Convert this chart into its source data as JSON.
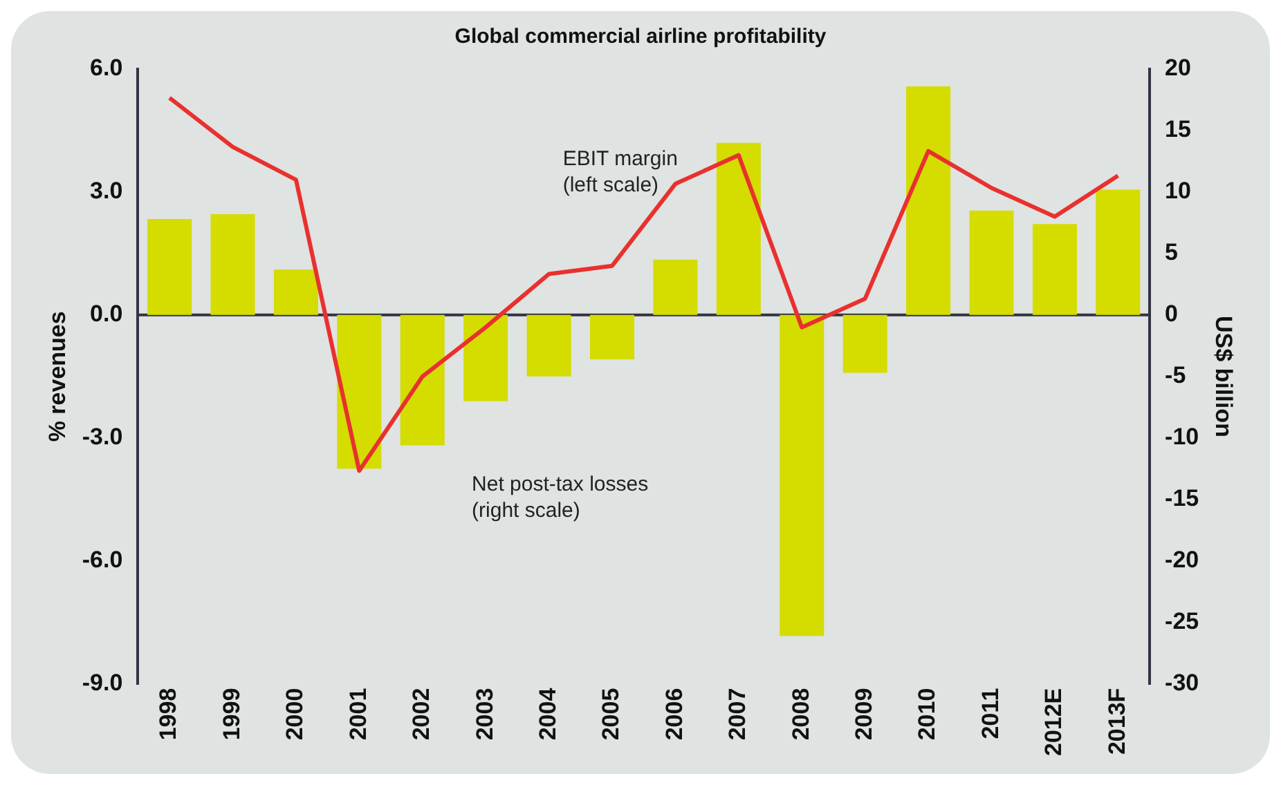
{
  "chart_data": {
    "type": "bar",
    "title": "Global commercial airline profitability",
    "categories": [
      "1998",
      "1999",
      "2000",
      "2001",
      "2002",
      "2003",
      "2004",
      "2005",
      "2006",
      "2007",
      "2008",
      "2009",
      "2010",
      "2011",
      "2012E",
      "2013F"
    ],
    "series": [
      {
        "axis": "y2",
        "color": "#d4dc00",
        "values": [
          7.8,
          8.2,
          3.7,
          -12.5,
          -10.6,
          -7.0,
          -5.0,
          -3.6,
          4.5,
          14.0,
          -26.1,
          -4.7,
          18.6,
          8.5,
          7.4,
          10.2
        ]
      },
      {
        "type": "line",
        "axis": "y",
        "color": "#e8312f",
        "values": [
          5.3,
          4.1,
          3.3,
          -3.8,
          -1.5,
          -0.3,
          1.0,
          1.2,
          3.2,
          3.9,
          -0.3,
          0.4,
          4.0,
          3.1,
          2.4,
          3.4
        ]
      }
    ],
    "ylabel": "% revenues",
    "y2label": "US$ billion",
    "ylim": [
      -9,
      6
    ],
    "yticks": [
      {
        "value": -9,
        "label": "-9.0"
      },
      {
        "value": -6,
        "label": "-6.0"
      },
      {
        "value": -3,
        "label": "-3.0"
      },
      {
        "value": 0,
        "label": "0.0"
      },
      {
        "value": 3,
        "label": "3.0"
      },
      {
        "value": 6,
        "label": "6.0"
      }
    ],
    "y2lim": [
      -30,
      20
    ],
    "y2ticks": [
      -30,
      -25,
      -20,
      -15,
      -10,
      -5,
      0,
      5,
      10,
      15,
      20
    ],
    "annotations": [
      "EBIT margin\n(left scale)",
      "Net post-tax losses\n(right scale)"
    ],
    "ref_lines": [
      {
        "axis": "y",
        "value": 0,
        "color": "#333344"
      }
    ],
    "grid": false,
    "legend": false,
    "marker": "none",
    "line_style": "solid"
  }
}
